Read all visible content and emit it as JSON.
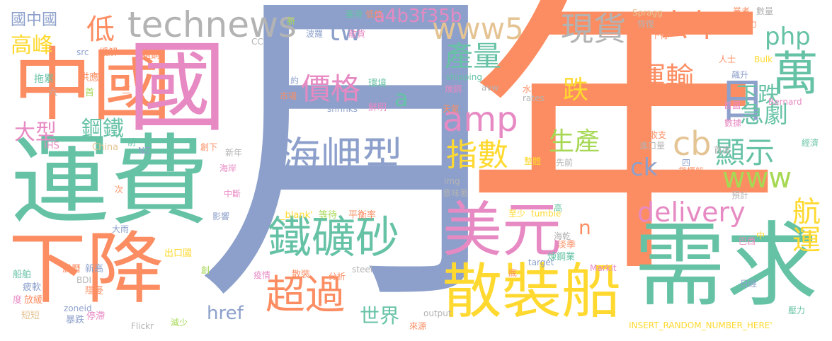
{
  "palette": [
    "#66c2a5",
    "#fc8d62",
    "#8da0cb",
    "#e78ac3",
    "#a6d854",
    "#ffd92f",
    "#e5c494",
    "#b3b3b3"
  ],
  "words": [
    {
      "text": "年",
      "color": "#fc8d62"
    },
    {
      "text": "月",
      "color": "#8da0cb"
    },
    {
      "text": "運費",
      "color": "#66c2a5"
    },
    {
      "text": "中國",
      "color": "#fc8d62"
    },
    {
      "text": "國",
      "color": "#e78ac3"
    },
    {
      "text": "需求",
      "color": "#66c2a5"
    },
    {
      "text": "下降",
      "color": "#fc8d62"
    },
    {
      "text": "散裝船",
      "color": "#ffd92f"
    },
    {
      "text": "美元",
      "color": "#e78ac3"
    },
    {
      "text": "鐵礦砂",
      "color": "#66c2a5"
    },
    {
      "text": "海岬型",
      "color": "#8da0cb"
    },
    {
      "text": "technews",
      "color": "#b3b3b3"
    },
    {
      "text": "日",
      "color": "#8da0cb"
    },
    {
      "text": "超過",
      "color": "#fc8d62"
    },
    {
      "text": "萬",
      "color": "#66c2a5"
    },
    {
      "text": "www5",
      "color": "#e5c494"
    },
    {
      "text": "去年",
      "color": "#fc8d62"
    },
    {
      "text": "現貨",
      "color": "#b3b3b3"
    },
    {
      "text": "價格",
      "color": "#e78ac3"
    },
    {
      "text": "amp",
      "color": "#e78ac3"
    },
    {
      "text": "指數",
      "color": "#ffd92f"
    },
    {
      "text": "delivery",
      "color": "#e78ac3"
    },
    {
      "text": "航運",
      "color": "#ffd92f"
    },
    {
      "text": "運輸",
      "color": "#fc8d62"
    },
    {
      "text": "cb",
      "color": "#e5c494"
    },
    {
      "text": "顯示",
      "color": "#66c2a5"
    },
    {
      "text": "www",
      "color": "#a6d854"
    },
    {
      "text": "產量",
      "color": "#66c2a5"
    },
    {
      "text": "php",
      "color": "#66c2a5"
    },
    {
      "text": "tw",
      "color": "#8da0cb"
    },
    {
      "text": "a4b3f35b",
      "color": "#e78ac3"
    },
    {
      "text": "低",
      "color": "#fc8d62"
    },
    {
      "text": "高峰",
      "color": "#ffd92f"
    },
    {
      "text": "國中國",
      "color": "#8da0cb"
    },
    {
      "text": "大型",
      "color": "#e78ac3"
    },
    {
      "text": "鋼鐵",
      "color": "#66c2a5"
    },
    {
      "text": "跌",
      "color": "#ffd92f"
    },
    {
      "text": "下跌",
      "color": "#66c2a5"
    },
    {
      "text": "急劇",
      "color": "#66c2a5"
    },
    {
      "text": "生產",
      "color": "#a6d854"
    },
    {
      "text": "ck",
      "color": "#8da0cb"
    },
    {
      "text": "href",
      "color": "#8da0cb"
    },
    {
      "text": "世界",
      "color": "#66c2a5"
    },
    {
      "text": "n",
      "color": "#fc8d62"
    },
    {
      "text": "a",
      "color": "#66c2a5"
    },
    {
      "text": "拖累",
      "color": "#66c2a5"
    },
    {
      "text": "供應",
      "color": "#fc8d62"
    },
    {
      "text": "src",
      "color": "#8da0cb"
    },
    {
      "text": "緩解",
      "color": "#fc8d62"
    },
    {
      "text": "粗鋼",
      "color": "#fc8d62"
    },
    {
      "text": "六",
      "color": "#b3b3b3"
    },
    {
      "text": "首",
      "color": "#a6d854"
    },
    {
      "text": "三",
      "color": "#fc8d62"
    },
    {
      "text": "IHS",
      "color": "#e78ac3"
    },
    {
      "text": "China",
      "color": "#e5c494"
    },
    {
      "text": "前",
      "color": "#66c2a5"
    },
    {
      "text": "NZ",
      "color": "#8da0cb"
    },
    {
      "text": "創下",
      "color": "#fc8d62"
    },
    {
      "text": "新年",
      "color": "#b3b3b3"
    },
    {
      "text": "海岸",
      "color": "#e78ac3"
    },
    {
      "text": "次",
      "color": "#fc8d62"
    },
    {
      "text": "中斷",
      "color": "#e78ac3"
    },
    {
      "text": "影響",
      "color": "#8da0cb"
    },
    {
      "text": "大雨",
      "color": "#8da0cb"
    },
    {
      "text": "出口國",
      "color": "#ffd92f"
    },
    {
      "text": "新高",
      "color": "#8da0cb"
    },
    {
      "text": "農曆",
      "color": "#fc8d62"
    },
    {
      "text": "船舶",
      "color": "#66c2a5"
    },
    {
      "text": "疲軟",
      "color": "#8da0cb"
    },
    {
      "text": "BDI",
      "color": "#b3b3b3"
    },
    {
      "text": "隱憂",
      "color": "#fc8d62"
    },
    {
      "text": "度",
      "color": "#e78ac3"
    },
    {
      "text": "放緩",
      "color": "#fc8d62"
    },
    {
      "text": "zoneid",
      "color": "#8da0cb"
    },
    {
      "text": "短短",
      "color": "#e5c494"
    },
    {
      "text": "暴跌",
      "color": "#8da0cb"
    },
    {
      "text": "停滯",
      "color": "#e78ac3"
    },
    {
      "text": "Flickr",
      "color": "#b3b3b3"
    },
    {
      "text": "減少",
      "color": "#a6d854"
    },
    {
      "text": "創",
      "color": "#a6d854"
    },
    {
      "text": "_blank'",
      "color": "#ffd92f"
    },
    {
      "text": "等待",
      "color": "#a6d854"
    },
    {
      "text": "平衡率",
      "color": "#fc8d62"
    },
    {
      "text": "疫情",
      "color": "#e78ac3"
    },
    {
      "text": "散裝",
      "color": "#fc8d62"
    },
    {
      "text": "分析",
      "color": "#fc8d62"
    },
    {
      "text": "steel",
      "color": "#b3b3b3"
    },
    {
      "text": "output",
      "color": "#b3b3b3"
    },
    {
      "text": "來源",
      "color": "#fc8d62"
    },
    {
      "text": "約",
      "color": "#8da0cb"
    },
    {
      "text": "市場",
      "color": "#fc8d62"
    },
    {
      "text": "環境",
      "color": "#66c2a5"
    },
    {
      "text": "shrinks",
      "color": "#8da0cb"
    },
    {
      "text": "鮮明",
      "color": "#e78ac3"
    },
    {
      "text": "shipping",
      "color": "#66c2a5"
    },
    {
      "text": "煉鋼",
      "color": "#e78ac3"
    },
    {
      "text": "avw",
      "color": "#b3b3b3"
    },
    {
      "text": "天氣",
      "color": "#fc8d62"
    },
    {
      "text": "img",
      "color": "#b3b3b3"
    },
    {
      "text": "意味著",
      "color": "#b3b3b3"
    },
    {
      "text": "至少",
      "color": "#ffd92f"
    },
    {
      "text": "tumble",
      "color": "#ffd92f"
    },
    {
      "text": "高",
      "color": "#66c2a5"
    },
    {
      "text": "海乾",
      "color": "#b3b3b3"
    },
    {
      "text": "淡季",
      "color": "#fc8d62"
    },
    {
      "text": "煉鋼業",
      "color": "#66c2a5"
    },
    {
      "text": "target",
      "color": "#8da0cb"
    },
    {
      "text": "Markit",
      "color": "#e78ac3"
    },
    {
      "text": "底",
      "color": "#fc8d62"
    },
    {
      "text": "巴西",
      "color": "#e78ac3"
    },
    {
      "text": "中",
      "color": "#ffd92f"
    },
    {
      "text": "日經",
      "color": "#8da0cb"
    },
    {
      "text": "壓力",
      "color": "#66c2a5"
    },
    {
      "text": "INSERT_RANDOM_NUMBER_HERE'",
      "color": "#ffd92f"
    },
    {
      "text": "新",
      "color": "#a6d854"
    },
    {
      "text": "低於",
      "color": "#8da0cb"
    },
    {
      "text": "波羅",
      "color": "#8da0cb"
    },
    {
      "text": "塞港",
      "color": "#66c2a5"
    },
    {
      "text": "散貨",
      "color": "#e78ac3"
    },
    {
      "text": "低位",
      "color": "#fc8d62"
    },
    {
      "text": "CC",
      "color": "#b3b3b3"
    },
    {
      "text": "Spragg",
      "color": "#e5c494"
    },
    {
      "text": "恢復",
      "color": "#b3b3b3"
    },
    {
      "text": "下行",
      "color": "#fc8d62"
    },
    {
      "text": "業者",
      "color": "#fc8d62"
    },
    {
      "text": "數量",
      "color": "#b3b3b3"
    },
    {
      "text": "運載力",
      "color": "#fc8d62"
    },
    {
      "text": "人士",
      "color": "#fc8d62"
    },
    {
      "text": "Bulk",
      "color": "#ffd92f"
    },
    {
      "text": "飆升",
      "color": "#8da0cb"
    },
    {
      "text": "水準",
      "color": "#fc8d62"
    },
    {
      "text": "rates",
      "color": "#b3b3b3"
    },
    {
      "text": "首圖",
      "color": "#e78ac3"
    },
    {
      "text": "數據",
      "color": "#e78ac3"
    },
    {
      "text": "Bernard",
      "color": "#e78ac3"
    },
    {
      "text": "收支",
      "color": "#fc8d62"
    },
    {
      "text": "進口量",
      "color": "#b3b3b3"
    },
    {
      "text": "首度",
      "color": "#b3b3b3"
    },
    {
      "text": "整體",
      "color": "#ffd92f"
    },
    {
      "text": "先前",
      "color": "#b3b3b3"
    },
    {
      "text": "四",
      "color": "#8da0cb"
    },
    {
      "text": "貨櫃船",
      "color": "#fc8d62"
    },
    {
      "text": "經濟",
      "color": "#66c2a5"
    },
    {
      "text": "預計",
      "color": "#b3b3b3"
    }
  ]
}
